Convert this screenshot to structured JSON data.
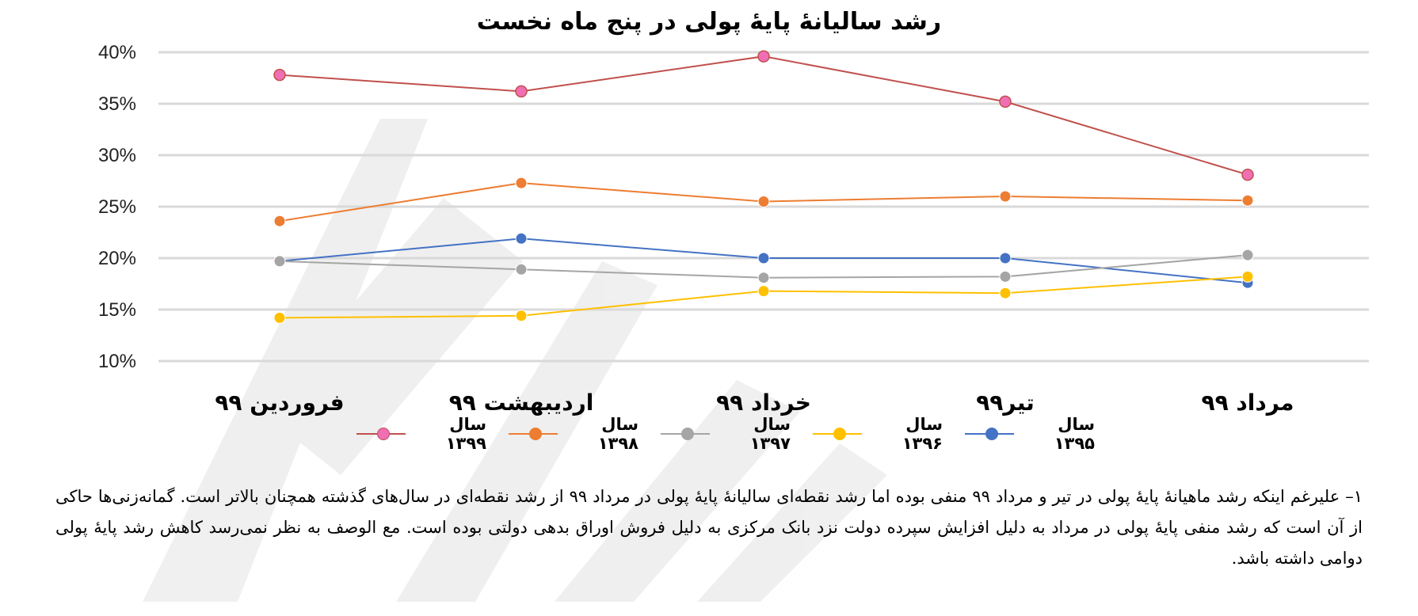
{
  "chart_data": {
    "type": "line",
    "title": "رشد سالیانهٔ پایهٔ پولی در پنج ماه نخست",
    "categories": [
      "فروردین ۹۹",
      "اردیبهشت ۹۹",
      "خرداد ۹۹",
      "تیر۹۹",
      "مرداد ۹۹"
    ],
    "ylim": [
      10,
      40
    ],
    "yticks": [
      "40%",
      "35%",
      "30%",
      "25%",
      "20%",
      "15%",
      "10%"
    ],
    "ytick_values": [
      40,
      35,
      30,
      25,
      20,
      15,
      10
    ],
    "grid": true,
    "legend_position": "bottom",
    "series": [
      {
        "name": "سال ۱۳۹۹",
        "color": "#C0504D",
        "marker_color": "#F06EB4",
        "values": [
          37.8,
          36.2,
          39.6,
          35.2,
          28.1
        ]
      },
      {
        "name": "سال ۱۳۹۸",
        "color": "#ED7D31",
        "marker_color": "#ED7D31",
        "values": [
          23.6,
          27.3,
          25.5,
          26.0,
          25.6
        ]
      },
      {
        "name": "سال ۱۳۹۷",
        "color": "#A5A5A5",
        "marker_color": "#A5A5A5",
        "values": [
          19.7,
          18.9,
          18.1,
          18.2,
          20.3
        ]
      },
      {
        "name": "سال ۱۳۹۶",
        "color": "#FFC000",
        "marker_color": "#FFC000",
        "values": [
          14.2,
          14.4,
          16.8,
          16.6,
          18.2
        ]
      },
      {
        "name": "سال ۱۳۹۵",
        "color": "#4472C4",
        "marker_color": "#4472C4",
        "values": [
          19.7,
          21.9,
          20.0,
          20.0,
          17.6
        ]
      }
    ]
  },
  "legend_order": [
    0,
    1,
    2,
    3,
    4
  ],
  "note": {
    "text": "۱– علیرغم اینکه رشد ماهیانهٔ پایهٔ پولی در تیر و مرداد ۹۹ منفی بوده اما رشد نقطه‌ای سالیانهٔ پایهٔ پولی در مرداد ۹۹ از رشد نقطه‌ای در سال‌های گذشته همچنان بالاتر است. گمانه‌زنی‌ها حاکی از آن است که رشد منفی پایهٔ پولی در مرداد به دلیل افزایش سپرده دولت نزد بانک مرکزی به دلیل فروش اوراق بدهی دولتی بوده است. مع الوصف به نظر نمی‌رسد کاهش رشد پایهٔ پولی دوامی داشته باشد."
  }
}
